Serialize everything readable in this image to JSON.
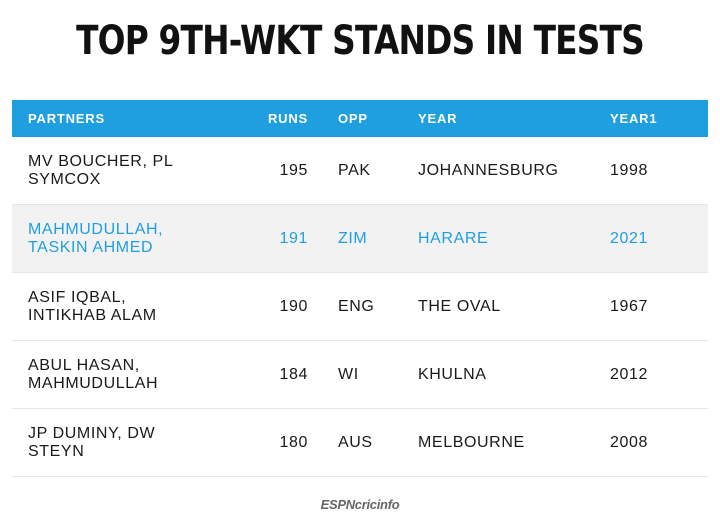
{
  "header": {
    "title": "TOP 9TH-WKT STANDS IN TESTS"
  },
  "table": {
    "columns": [
      "PARTNERS",
      "RUNS",
      "OPP",
      "YEAR",
      "YEAR1"
    ],
    "rows": [
      [
        "MV BOUCHER, PL SYMCOX",
        195,
        "PAK",
        "JOHANNESBURG",
        1998
      ],
      [
        "MAHMUDULLAH, TASKIN AHMED",
        191,
        "ZIM",
        "HARARE",
        2021
      ],
      [
        "ASIF IQBAL, INTIKHAB ALAM",
        190,
        "ENG",
        "THE OVAL",
        1967
      ],
      [
        "ABUL HASAN, MAHMUDULLAH",
        184,
        "WI",
        "KHULNA",
        2012
      ],
      [
        "JP DUMINY, DW STEYN",
        180,
        "AUS",
        "MELBOURNE",
        2008
      ]
    ]
  },
  "footer": {
    "logo": "ESPNcricinfo"
  }
}
